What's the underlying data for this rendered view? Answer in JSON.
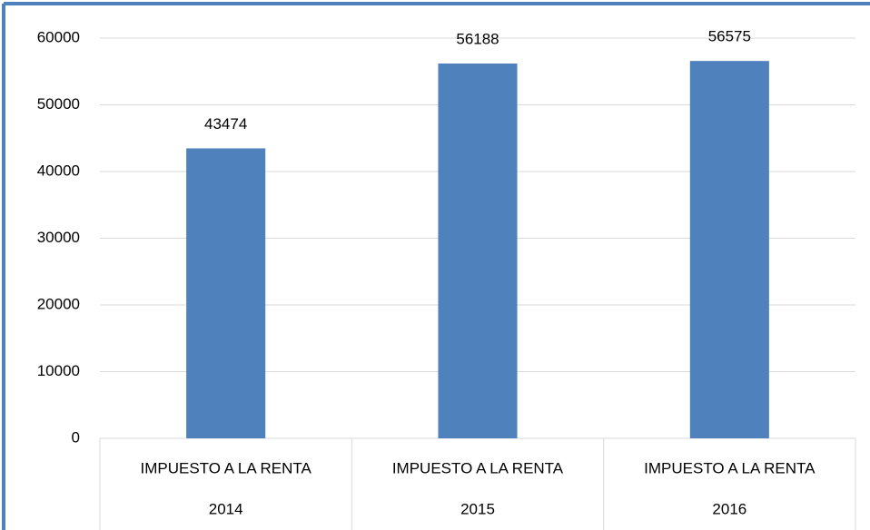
{
  "chart_data": {
    "type": "bar",
    "categories": [
      [
        "IMPUESTO A LA RENTA",
        "2014"
      ],
      [
        "IMPUESTO A LA RENTA",
        "2015"
      ],
      [
        "IMPUESTO A LA RENTA",
        "2016"
      ]
    ],
    "values": [
      43474,
      56188,
      56575
    ],
    "color": "#4f81bd",
    "ylim": [
      0,
      60000
    ],
    "yticks": [
      0,
      10000,
      20000,
      30000,
      40000,
      50000,
      60000
    ],
    "grid": true
  }
}
